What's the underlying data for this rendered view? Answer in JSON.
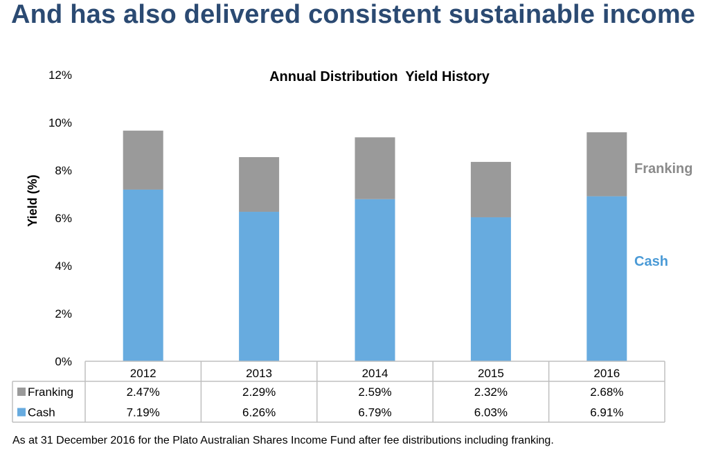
{
  "slide_title": "And has also delivered consistent sustainable income",
  "footnote": "As at 31 December 2016 for the Plato Australian Shares Income Fund after fee distributions including franking.",
  "colors": {
    "title": "#2b4a72",
    "cash": "#67abdf",
    "franking": "#9a9a9a",
    "cash_label": "#4a9ad6",
    "franking_label": "#8a8a8a",
    "table_border": "#bfbfbf"
  },
  "chart_data": {
    "type": "bar",
    "stacked": true,
    "title": "Annual Distribution  Yield History",
    "ylabel": "Yield (%)",
    "xlabel": "",
    "ylim": [
      0,
      12
    ],
    "y_ticks": [
      "0%",
      "2%",
      "4%",
      "6%",
      "8%",
      "10%",
      "12%"
    ],
    "categories": [
      "2012",
      "2013",
      "2014",
      "2015",
      "2016"
    ],
    "series": [
      {
        "name": "Cash",
        "values": [
          7.19,
          6.26,
          6.79,
          6.03,
          6.91
        ]
      },
      {
        "name": "Franking",
        "values": [
          2.47,
          2.29,
          2.59,
          2.32,
          2.68
        ]
      }
    ],
    "annotations": {
      "franking": "Franking",
      "cash": "Cash"
    },
    "data_table": {
      "rows": [
        {
          "label": "Franking",
          "values": [
            "2.47%",
            "2.29%",
            "2.59%",
            "2.32%",
            "2.68%"
          ]
        },
        {
          "label": "Cash",
          "values": [
            "7.19%",
            "6.26%",
            "6.79%",
            "6.03%",
            "6.91%"
          ]
        }
      ]
    },
    "grid": false
  }
}
